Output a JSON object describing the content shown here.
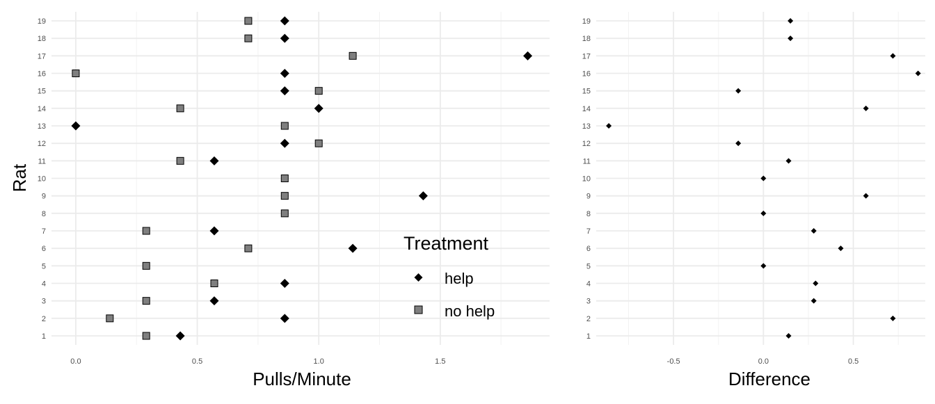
{
  "chart_data": [
    {
      "type": "scatter",
      "title": "",
      "xlabel": "Pulls/Minute",
      "ylabel": "Rat",
      "xlim": [
        -0.1,
        1.95
      ],
      "ylim": [
        0.5,
        19.5
      ],
      "x_ticks": [
        0.0,
        0.5,
        1.0,
        1.5
      ],
      "x_tick_labels": [
        "0.0",
        "0.5",
        "1.0",
        "1.5"
      ],
      "y_ticks": [
        1,
        2,
        3,
        4,
        5,
        6,
        7,
        8,
        9,
        10,
        11,
        12,
        13,
        14,
        15,
        16,
        17,
        18,
        19
      ],
      "y_tick_labels": [
        "1",
        "2",
        "3",
        "4",
        "5",
        "6",
        "7",
        "8",
        "9",
        "10",
        "11",
        "12",
        "13",
        "14",
        "15",
        "16",
        "17",
        "18",
        "19"
      ],
      "grid": true,
      "legend": {
        "title": "Treatment",
        "position": "bottom-right inside",
        "entries": [
          {
            "label": "help",
            "marker": "diamond",
            "color": "#000000"
          },
          {
            "label": "no help",
            "marker": "square",
            "color": "#7f7f7f"
          }
        ]
      },
      "series": [
        {
          "name": "help",
          "marker": "diamond",
          "color": "#000000",
          "points": [
            {
              "rat": 1,
              "x": 0.43
            },
            {
              "rat": 2,
              "x": 0.86
            },
            {
              "rat": 3,
              "x": 0.57
            },
            {
              "rat": 4,
              "x": 0.86
            },
            {
              "rat": 6,
              "x": 1.14
            },
            {
              "rat": 7,
              "x": 0.57
            },
            {
              "rat": 9,
              "x": 1.43
            },
            {
              "rat": 11,
              "x": 0.57
            },
            {
              "rat": 12,
              "x": 0.86
            },
            {
              "rat": 13,
              "x": 0.0
            },
            {
              "rat": 14,
              "x": 1.0
            },
            {
              "rat": 15,
              "x": 0.86
            },
            {
              "rat": 16,
              "x": 0.86
            },
            {
              "rat": 17,
              "x": 1.86
            },
            {
              "rat": 18,
              "x": 0.86
            },
            {
              "rat": 19,
              "x": 0.86
            }
          ]
        },
        {
          "name": "no help",
          "marker": "square",
          "color": "#7f7f7f",
          "points": [
            {
              "rat": 1,
              "x": 0.29
            },
            {
              "rat": 2,
              "x": 0.14
            },
            {
              "rat": 3,
              "x": 0.29
            },
            {
              "rat": 4,
              "x": 0.57
            },
            {
              "rat": 5,
              "x": 0.29
            },
            {
              "rat": 6,
              "x": 0.71
            },
            {
              "rat": 7,
              "x": 0.29
            },
            {
              "rat": 8,
              "x": 0.86
            },
            {
              "rat": 9,
              "x": 0.86
            },
            {
              "rat": 10,
              "x": 0.86
            },
            {
              "rat": 11,
              "x": 0.43
            },
            {
              "rat": 12,
              "x": 1.0
            },
            {
              "rat": 13,
              "x": 0.86
            },
            {
              "rat": 14,
              "x": 0.43
            },
            {
              "rat": 15,
              "x": 1.0
            },
            {
              "rat": 16,
              "x": 0.0
            },
            {
              "rat": 17,
              "x": 1.14
            },
            {
              "rat": 18,
              "x": 0.71
            },
            {
              "rat": 19,
              "x": 0.71
            }
          ]
        }
      ]
    },
    {
      "type": "scatter",
      "title": "",
      "xlabel": "Difference",
      "ylabel": "",
      "xlim": [
        -0.93,
        0.9
      ],
      "ylim": [
        0.5,
        19.5
      ],
      "x_ticks": [
        -0.5,
        0.0,
        0.5
      ],
      "x_tick_labels": [
        "-0.5",
        "0.0",
        "0.5"
      ],
      "y_ticks": [
        1,
        2,
        3,
        4,
        5,
        6,
        7,
        8,
        9,
        10,
        11,
        12,
        13,
        14,
        15,
        16,
        17,
        18,
        19
      ],
      "y_tick_labels": [
        "1",
        "2",
        "3",
        "4",
        "5",
        "6",
        "7",
        "8",
        "9",
        "10",
        "11",
        "12",
        "13",
        "14",
        "15",
        "16",
        "17",
        "18",
        "19"
      ],
      "grid": true,
      "series": [
        {
          "name": "",
          "marker": "diamond",
          "color": "#000000",
          "points": [
            {
              "rat": 1,
              "x": 0.14
            },
            {
              "rat": 2,
              "x": 0.72
            },
            {
              "rat": 3,
              "x": 0.28
            },
            {
              "rat": 4,
              "x": 0.29
            },
            {
              "rat": 5,
              "x": 0.0
            },
            {
              "rat": 6,
              "x": 0.43
            },
            {
              "rat": 7,
              "x": 0.28
            },
            {
              "rat": 8,
              "x": 0.0
            },
            {
              "rat": 9,
              "x": 0.57
            },
            {
              "rat": 10,
              "x": 0.0
            },
            {
              "rat": 11,
              "x": 0.14
            },
            {
              "rat": 12,
              "x": -0.14
            },
            {
              "rat": 13,
              "x": -0.86
            },
            {
              "rat": 14,
              "x": 0.57
            },
            {
              "rat": 15,
              "x": -0.14
            },
            {
              "rat": 16,
              "x": 0.86
            },
            {
              "rat": 17,
              "x": 0.72
            },
            {
              "rat": 18,
              "x": 0.15
            },
            {
              "rat": 19,
              "x": 0.15
            }
          ]
        }
      ]
    }
  ]
}
